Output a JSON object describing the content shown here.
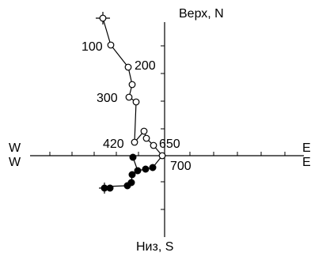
{
  "axes": {
    "top_label": "Верх, N",
    "bottom_label": "Низ, S",
    "left_labels": [
      "W",
      "W"
    ],
    "right_labels": [
      "E",
      "E"
    ]
  },
  "step_labels": [
    "100",
    "200",
    "300",
    "420",
    "650",
    "700"
  ],
  "colors": {
    "line": "#000000",
    "open_marker": "#ffffff",
    "filled_marker": "#000000"
  },
  "marker_types": [
    "open-circle",
    "filled-circle",
    "start-cross"
  ]
}
